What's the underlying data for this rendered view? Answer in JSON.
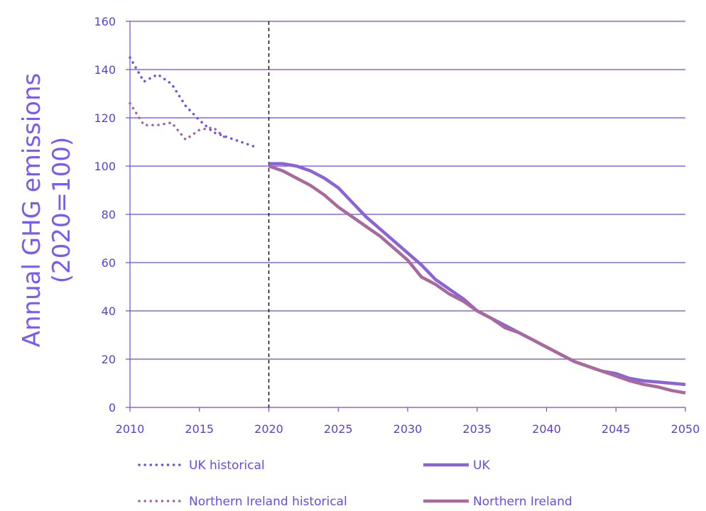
{
  "chart_data": {
    "type": "line",
    "title": "",
    "xlabel": "",
    "ylabel": "Annual GHG emissions (2020=100)",
    "ylabel_lines": [
      "Annual GHG emissions",
      "(2020=100)"
    ],
    "xlim": [
      2010,
      2050
    ],
    "ylim": [
      0,
      160
    ],
    "x_ticks": [
      2010,
      2015,
      2020,
      2025,
      2030,
      2035,
      2040,
      2045,
      2050
    ],
    "y_ticks": [
      0,
      20,
      40,
      60,
      80,
      100,
      120,
      140,
      160
    ],
    "grid": "horizontal",
    "reference_line_x": 2020,
    "legend_position": "bottom",
    "series": [
      {
        "name": "UK historical",
        "style": "dotted",
        "color": "#6b4ff0",
        "x": [
          2010,
          2011,
          2012,
          2013,
          2014,
          2015,
          2016,
          2017,
          2018,
          2019
        ],
        "y": [
          145,
          135,
          138,
          134,
          125,
          119,
          114,
          112,
          110,
          108
        ]
      },
      {
        "name": "Northern Ireland historical",
        "style": "dotted",
        "color": "#a3659e",
        "x": [
          2010,
          2011,
          2012,
          2013,
          2014,
          2015,
          2016,
          2017
        ],
        "y": [
          126,
          117,
          117,
          118,
          111,
          115,
          116,
          111
        ]
      },
      {
        "name": "UK",
        "style": "solid",
        "color": "#8a63d6",
        "x": [
          2020,
          2021,
          2022,
          2023,
          2024,
          2025,
          2026,
          2027,
          2028,
          2029,
          2030,
          2031,
          2032,
          2033,
          2034,
          2035,
          2036,
          2037,
          2038,
          2039,
          2040,
          2041,
          2042,
          2043,
          2044,
          2045,
          2046,
          2047,
          2048,
          2049,
          2050
        ],
        "y": [
          101,
          101,
          100,
          98,
          95,
          91,
          85,
          79,
          74,
          69,
          64,
          59,
          53,
          49,
          45,
          40,
          37,
          34,
          31,
          28,
          25,
          22,
          19,
          17,
          15,
          14,
          12,
          11,
          10.5,
          10,
          9.5
        ]
      },
      {
        "name": "Northern Ireland",
        "style": "solid",
        "color": "#a86a9c",
        "x": [
          2020,
          2021,
          2022,
          2023,
          2024,
          2025,
          2026,
          2027,
          2028,
          2029,
          2030,
          2031,
          2032,
          2033,
          2034,
          2035,
          2036,
          2037,
          2038,
          2039,
          2040,
          2041,
          2042,
          2043,
          2044,
          2045,
          2046,
          2047,
          2048,
          2049,
          2050
        ],
        "y": [
          100,
          98,
          95,
          92,
          88,
          83,
          79,
          75,
          71,
          66,
          61,
          54,
          51,
          47,
          44,
          40,
          37,
          33,
          31,
          28,
          25,
          22,
          19,
          17,
          15,
          13,
          11,
          9.5,
          8.5,
          7,
          6
        ]
      }
    ],
    "legend": [
      {
        "label": "UK historical",
        "style": "dotted",
        "color": "#6b4ff0"
      },
      {
        "label": "UK",
        "style": "solid",
        "color": "#8a63d6"
      },
      {
        "label": "Northern Ireland historical",
        "style": "dotted",
        "color": "#a3659e"
      },
      {
        "label": "Northern Ireland",
        "style": "solid",
        "color": "#a86a9c"
      }
    ]
  },
  "colors": {
    "grid": "#6a4ae8",
    "axis": "#6a4ae8",
    "ticks": "#5b3fd8",
    "ylabel": "#7a5af5",
    "reference_line": "#000000"
  }
}
